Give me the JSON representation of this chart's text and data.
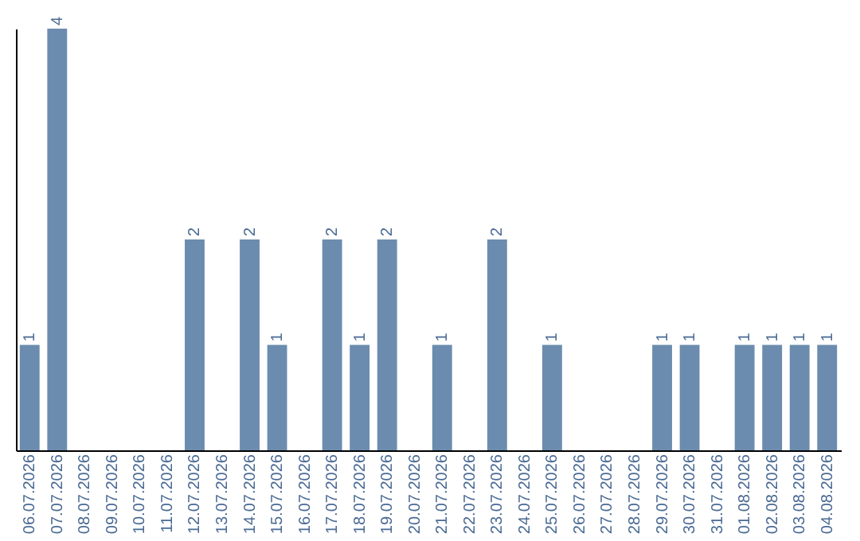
{
  "chart_data": {
    "type": "bar",
    "categories": [
      "06.07.2026",
      "07.07.2026",
      "08.07.2026",
      "09.07.2026",
      "10.07.2026",
      "11.07.2026",
      "12.07.2026",
      "13.07.2026",
      "14.07.2026",
      "15.07.2026",
      "16.07.2026",
      "17.07.2026",
      "18.07.2026",
      "19.07.2026",
      "20.07.2026",
      "21.07.2026",
      "22.07.2026",
      "23.07.2026",
      "24.07.2026",
      "25.07.2026",
      "26.07.2026",
      "27.07.2026",
      "28.07.2026",
      "29.07.2026",
      "30.07.2026",
      "31.07.2026",
      "01.08.2026",
      "02.08.2026",
      "03.08.2026",
      "04.08.2026"
    ],
    "values": [
      1,
      4,
      0,
      0,
      0,
      0,
      2,
      0,
      2,
      1,
      0,
      2,
      1,
      2,
      0,
      1,
      0,
      2,
      0,
      1,
      0,
      0,
      0,
      1,
      1,
      0,
      1,
      1,
      1,
      1
    ],
    "value_labels": [
      "1",
      "4",
      null,
      null,
      null,
      null,
      "2",
      null,
      "2",
      "1",
      null,
      "2",
      "1",
      "2",
      null,
      "1",
      null,
      "2",
      null,
      "1",
      null,
      null,
      null,
      "1",
      "1",
      null,
      "1",
      "1",
      "1",
      "1"
    ],
    "color": "#6b8cae",
    "tick_labels": "x"
  }
}
